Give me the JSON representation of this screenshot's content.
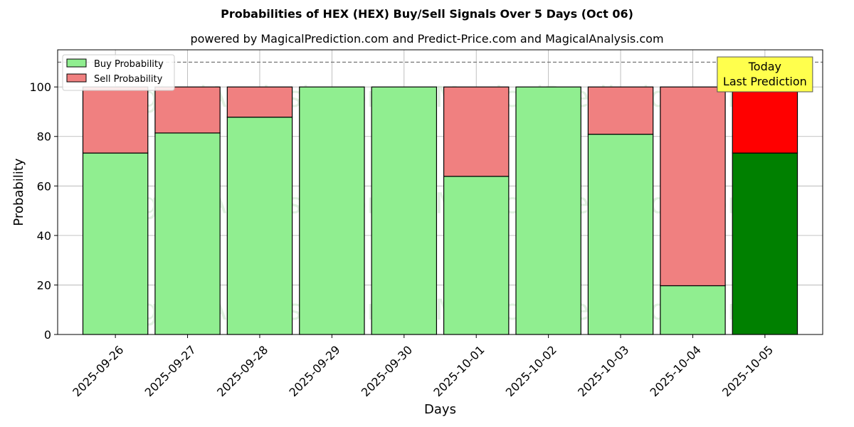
{
  "title": "Probabilities of HEX (HEX) Buy/Sell Signals Over 5 Days (Oct 06)",
  "subtitle": "powered by MagicalPrediction.com and Predict-Price.com and MagicalAnalysis.com",
  "watermarks": [
    "MagicalAnalysis.com",
    "MagicalPrediction.com"
  ],
  "colors": {
    "buy": "#90ee90",
    "sell": "#f08080",
    "buy_today": "#008000",
    "sell_today": "#ff0000",
    "annotation_bg": "#ffff4d",
    "watermark": "#c8e6c8"
  },
  "chart_data": {
    "type": "bar",
    "stacked": true,
    "categories": [
      "2025-09-26",
      "2025-09-27",
      "2025-09-28",
      "2025-09-29",
      "2025-09-30",
      "2025-10-01",
      "2025-10-02",
      "2025-10-03",
      "2025-10-04",
      "2025-10-05"
    ],
    "series": [
      {
        "name": "Buy Probability",
        "values": [
          73.3,
          81.4,
          87.8,
          100,
          100,
          63.9,
          100,
          80.9,
          19.7,
          73.3
        ]
      },
      {
        "name": "Sell Probability",
        "values": [
          26.7,
          18.6,
          12.2,
          0,
          0,
          36.1,
          0,
          19.1,
          80.3,
          26.7
        ]
      }
    ],
    "xlabel": "Days",
    "ylabel": "Probability",
    "ylim": [
      0,
      115
    ],
    "yticks": [
      0,
      20,
      40,
      60,
      80,
      100
    ],
    "reference_line": 110,
    "grid": true,
    "legend": "top-left",
    "annotation": {
      "lines": [
        "Today",
        "Last Prediction"
      ],
      "category": "2025-10-05"
    }
  }
}
